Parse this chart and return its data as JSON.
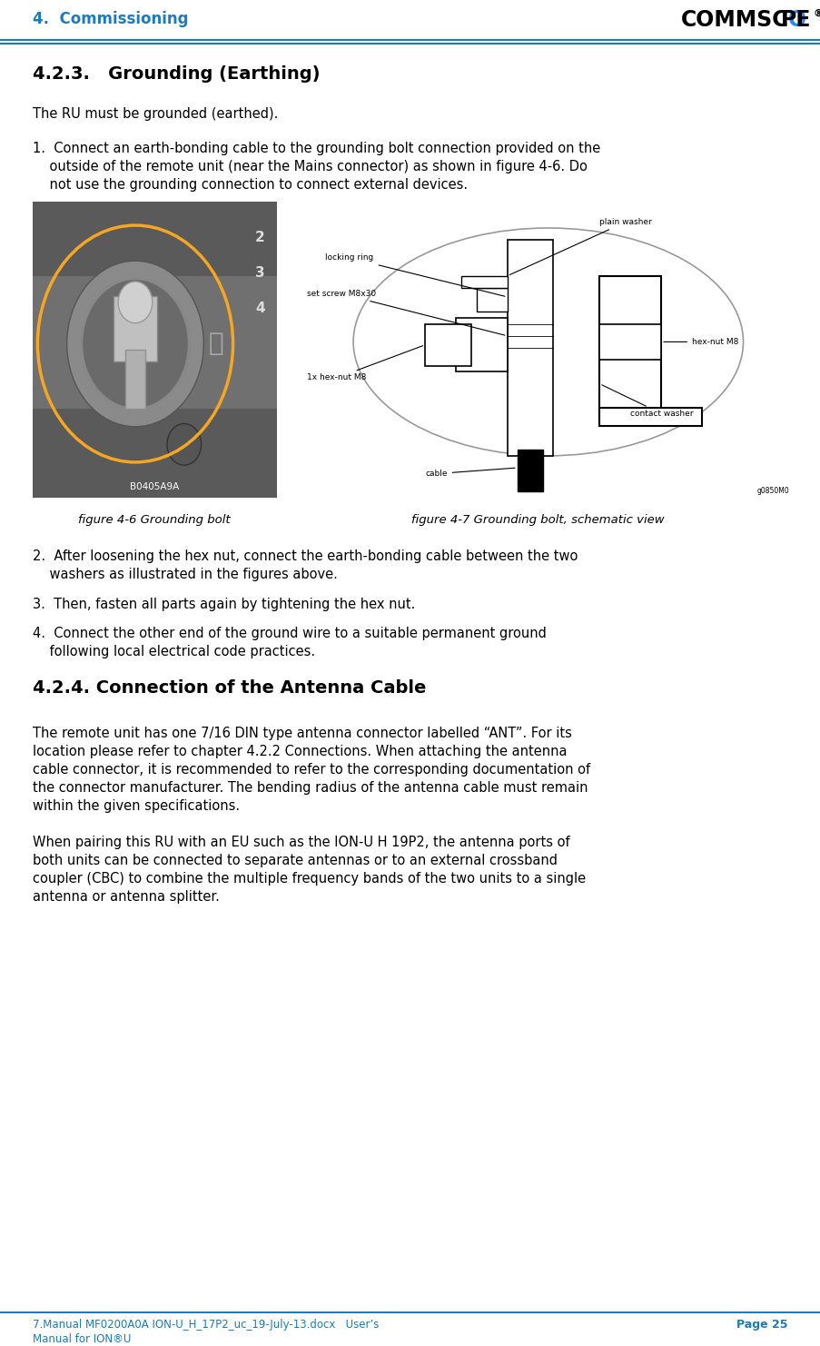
{
  "page_title": "4.  Commissioning",
  "header_line_color": "#1a7bbf",
  "bg_color": "#ffffff",
  "title_color": "#1a7bbf",
  "section_title": "4.2.3.   Grounding (Earthing)",
  "para1": "The RU must be grounded (earthed).",
  "item1_line1": "1.  Connect an earth-bonding cable to the grounding bolt connection provided on the",
  "item1_line2": "    outside of the remote unit (near the Mains connector) as shown in figure 4-6. Do",
  "item1_line3": "    not use the grounding connection to connect external devices.",
  "fig46_caption": "figure 4-6 Grounding bolt",
  "fig47_caption": "figure 4-7 Grounding bolt, schematic view",
  "item2_line1": "2.  After loosening the hex nut, connect the earth-bonding cable between the two",
  "item2_line2": "    washers as illustrated in the figures above.",
  "item3": "3.  Then, fasten all parts again by tightening the hex nut.",
  "item4_line1": "4.  Connect the other end of the ground wire to a suitable permanent ground",
  "item4_line2": "    following local electrical code practices.",
  "section2_title": "4.2.4. Connection of the Antenna Cable",
  "para2_line1": "The remote unit has one 7/16 DIN type antenna connector labelled “ANT”. For its",
  "para2_line2": "location please refer to chapter 4.2.2 Connections. When attaching the antenna",
  "para2_line3": "cable connector, it is recommended to refer to the corresponding documentation of",
  "para2_line4": "the connector manufacturer. The bending radius of the antenna cable must remain",
  "para2_line5": "within the given specifications.",
  "para3_line1": "When pairing this RU with an EU such as the ION-U H 19P2, the antenna ports of",
  "para3_line2": "both units can be connected to separate antennas or to an external crossband",
  "para3_line3": "coupler (CBC) to combine the multiple frequency bands of the two units to a single",
  "para3_line4": "antenna or antenna splitter.",
  "footer_left1": "7.Manual MF0200A0A ION-U_H_17P2_uc_19-July-13.docx   User’s",
  "footer_left2": "Manual for ION®U",
  "footer_page": "Page 25",
  "footer_color": "#1a7bbf"
}
